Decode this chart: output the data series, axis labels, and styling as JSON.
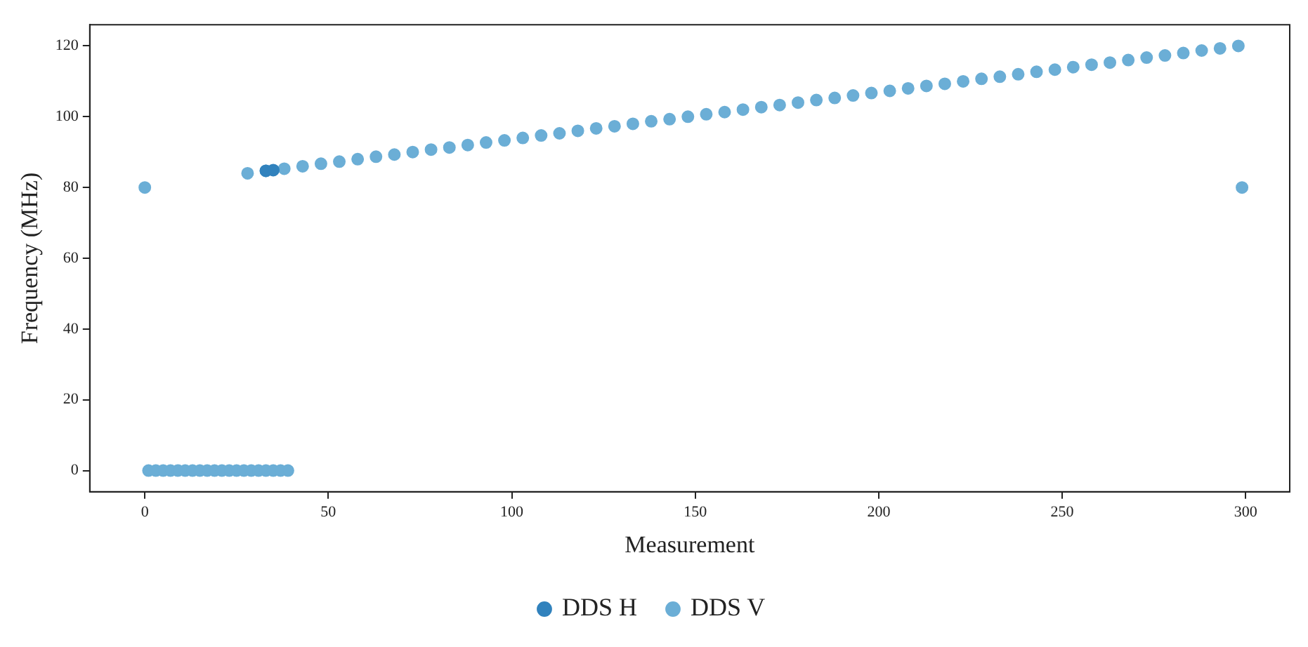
{
  "chart_data": {
    "type": "scatter",
    "xlabel": "Measurement",
    "ylabel": "Frequency (MHz)",
    "xlim": [
      -15,
      312
    ],
    "ylim": [
      -6,
      126
    ],
    "xticks": [
      0,
      50,
      100,
      150,
      200,
      250,
      300
    ],
    "yticks": [
      0,
      20,
      40,
      60,
      80,
      100,
      120
    ],
    "legend": "bottom",
    "marker": "circle",
    "series": [
      {
        "name": "DDS H",
        "color": "#3182bd",
        "x": [
          33,
          35
        ],
        "values": [
          84.7,
          84.9
        ]
      },
      {
        "name": "DDS V",
        "color": "#6baed6",
        "x": [
          0,
          1,
          3,
          5,
          7,
          9,
          11,
          13,
          15,
          17,
          19,
          21,
          23,
          25,
          27,
          29,
          31,
          33,
          35,
          37,
          39,
          28,
          33,
          38,
          43,
          48,
          53,
          58,
          63,
          68,
          73,
          78,
          83,
          88,
          93,
          98,
          103,
          108,
          113,
          118,
          123,
          128,
          133,
          138,
          143,
          148,
          153,
          158,
          163,
          168,
          173,
          178,
          183,
          188,
          193,
          198,
          203,
          208,
          213,
          218,
          223,
          228,
          233,
          238,
          243,
          248,
          253,
          258,
          263,
          268,
          273,
          278,
          283,
          288,
          293,
          298,
          299
        ],
        "values": [
          80,
          0,
          0,
          0,
          0,
          0,
          0,
          0,
          0,
          0,
          0,
          0,
          0,
          0,
          0,
          0,
          0,
          0,
          0,
          0,
          0,
          84,
          84.7,
          85.3,
          86,
          86.7,
          87.3,
          88,
          88.7,
          89.3,
          90,
          90.7,
          91.3,
          92,
          92.7,
          93.3,
          94,
          94.7,
          95.3,
          96,
          96.7,
          97.3,
          98,
          98.7,
          99.3,
          100,
          100.7,
          101.3,
          102,
          102.7,
          103.3,
          104,
          104.7,
          105.3,
          106,
          106.7,
          107.3,
          108,
          108.7,
          109.3,
          110,
          110.7,
          111.3,
          112,
          112.7,
          113.3,
          114,
          114.7,
          115.3,
          116,
          116.7,
          117.3,
          118,
          118.7,
          119.3,
          120,
          80
        ]
      }
    ]
  }
}
